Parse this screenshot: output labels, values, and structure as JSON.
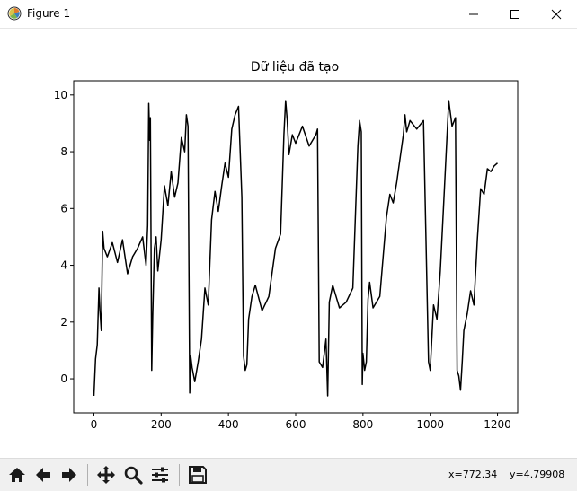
{
  "window": {
    "title": "Figure 1",
    "app_icon": "matplotlib-figure-icon",
    "buttons": [
      "minimize-icon",
      "maximize-icon",
      "close-icon"
    ]
  },
  "toolbar": {
    "buttons": [
      "home-icon",
      "back-arrow-icon",
      "forward-arrow-icon",
      "pan-move-icon",
      "zoom-magnifier-icon",
      "configure-subplots-icon",
      "save-disk-icon"
    ],
    "x_readout": "x=772.34",
    "y_readout": "y=4.79908"
  },
  "chart_data": {
    "type": "line",
    "title": "Dữ liệu đã tạo",
    "xlabel": "",
    "ylabel": "",
    "xlim": [
      -60,
      1260
    ],
    "ylim": [
      -1.2,
      10.5
    ],
    "x_ticks": [
      0,
      200,
      400,
      600,
      800,
      1000,
      1200
    ],
    "x_tick_labels": [
      "0",
      "200",
      "400",
      "600",
      "800",
      "1000",
      "1200"
    ],
    "y_ticks": [
      0,
      2,
      4,
      6,
      8,
      10
    ],
    "y_tick_labels": [
      "0",
      "2",
      "4",
      "6",
      "8",
      "10"
    ],
    "grid": false,
    "line_color": "#000000",
    "series": [
      {
        "x": [
          0,
          5,
          10,
          15,
          18,
          22,
          26,
          30,
          40,
          55,
          70,
          85,
          100,
          115,
          130,
          145,
          155,
          160,
          163,
          166,
          168,
          172,
          175,
          180,
          185,
          190,
          200,
          210,
          220,
          230,
          240,
          250,
          260,
          270,
          275,
          280,
          285,
          288,
          292,
          300,
          310,
          320,
          330,
          340,
          350,
          360,
          370,
          380,
          390,
          400,
          410,
          420,
          430,
          440,
          445,
          450,
          455,
          460,
          470,
          480,
          500,
          520,
          540,
          555,
          560,
          565,
          570,
          575,
          580,
          590,
          600,
          620,
          640,
          660,
          665,
          670,
          680,
          690,
          695,
          700,
          710,
          730,
          750,
          770,
          785,
          790,
          795,
          798,
          800,
          805,
          810,
          815,
          820,
          830,
          850,
          870,
          880,
          890,
          900,
          920,
          925,
          930,
          940,
          960,
          980,
          995,
          1000,
          1005,
          1010,
          1020,
          1030,
          1040,
          1055,
          1065,
          1075,
          1080,
          1085,
          1090,
          1095,
          1100,
          1110,
          1120,
          1130,
          1140,
          1150,
          1160,
          1170,
          1180,
          1190,
          1200
        ],
        "y": [
          -0.6,
          0.7,
          1.2,
          3.2,
          2.4,
          1.7,
          5.2,
          4.6,
          4.3,
          4.8,
          4.1,
          4.9,
          3.7,
          4.3,
          4.6,
          5.0,
          4.0,
          5.4,
          9.7,
          8.4,
          9.2,
          0.3,
          2.2,
          4.6,
          5.0,
          3.8,
          4.9,
          6.8,
          6.1,
          7.3,
          6.4,
          6.9,
          8.5,
          8.0,
          9.3,
          8.9,
          -0.5,
          0.8,
          0.4,
          -0.1,
          0.6,
          1.4,
          3.2,
          2.6,
          5.6,
          6.6,
          5.9,
          6.8,
          7.6,
          7.1,
          8.8,
          9.3,
          9.6,
          6.4,
          0.8,
          0.3,
          0.5,
          2.1,
          2.9,
          3.3,
          2.4,
          2.9,
          4.6,
          5.1,
          6.8,
          8.6,
          9.8,
          9.1,
          7.9,
          8.6,
          8.3,
          8.9,
          8.2,
          8.6,
          8.8,
          0.6,
          0.4,
          1.4,
          -0.6,
          2.7,
          3.3,
          2.5,
          2.7,
          3.2,
          8.2,
          9.1,
          8.7,
          -0.2,
          0.9,
          0.3,
          0.6,
          2.8,
          3.4,
          2.5,
          2.9,
          5.7,
          6.5,
          6.2,
          6.9,
          8.6,
          9.3,
          8.7,
          9.1,
          8.8,
          9.1,
          0.6,
          0.3,
          1.5,
          2.6,
          2.1,
          3.8,
          6.2,
          9.8,
          8.9,
          9.2,
          0.3,
          0.1,
          -0.4,
          0.6,
          1.7,
          2.3,
          3.1,
          2.6,
          4.9,
          6.7,
          6.5,
          7.4,
          7.3,
          7.5,
          7.6
        ]
      }
    ]
  }
}
